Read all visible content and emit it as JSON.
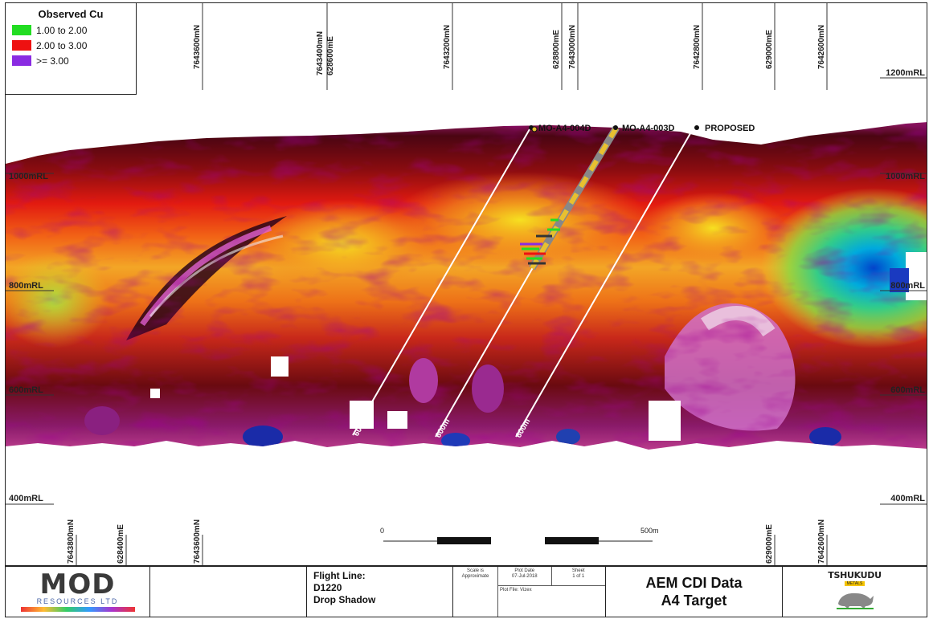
{
  "legend": {
    "title": "Observed Cu",
    "items": [
      {
        "label": "1.00 to 2.00",
        "color": "#22dd22"
      },
      {
        "label": "2.00 to 3.00",
        "color": "#ee1111"
      },
      {
        "label": ">= 3.00",
        "color": "#8a2be2"
      }
    ]
  },
  "top_ticks": [
    "7643600mN",
    "7643400mN",
    "628600mE",
    "7643200mN",
    "628800mE",
    "7643000mN",
    "7642800mN",
    "629000mE",
    "7642600mN"
  ],
  "bottom_ticks": [
    "7643800mN",
    "628400mE",
    "7643600mN",
    "629000mE",
    "7642600mN"
  ],
  "rl_labels_left": [
    "1000mRL",
    "800mRL",
    "600mRL",
    "400mRL"
  ],
  "rl_labels_right": [
    "1200mRL",
    "1000mRL",
    "800mRL",
    "600mRL",
    "400mRL"
  ],
  "holes": [
    {
      "name": "MO-A4-004D",
      "depth_label": "600m"
    },
    {
      "name": "MO-A4-003D",
      "depth_label": "600m"
    },
    {
      "name": "PROPOSED",
      "depth_label": "600m"
    }
  ],
  "scale_bar": {
    "start": "0",
    "end": "500m"
  },
  "title_block": {
    "company": "MOD",
    "company_sub": "RESOURCES LTD",
    "flight_line_label": "Flight Line:",
    "flight_line": "D1220",
    "shading": "Drop Shadow",
    "scale_label": "Scale is Approximate",
    "plot_date_label": "Plot Date",
    "plot_date": "07-Jul-2018",
    "sheet_label": "Sheet",
    "sheet": "1 of 1",
    "plot_file": "Plot File: Vizex",
    "title_line1": "AEM CDI Data",
    "title_line2": "A4 Target",
    "partner": "TSHUKUDU",
    "partner_sub": "METALS"
  },
  "colors": {
    "frame": "#222222",
    "drill_line": "#ffffff",
    "hole_trace": "#d9a520"
  }
}
